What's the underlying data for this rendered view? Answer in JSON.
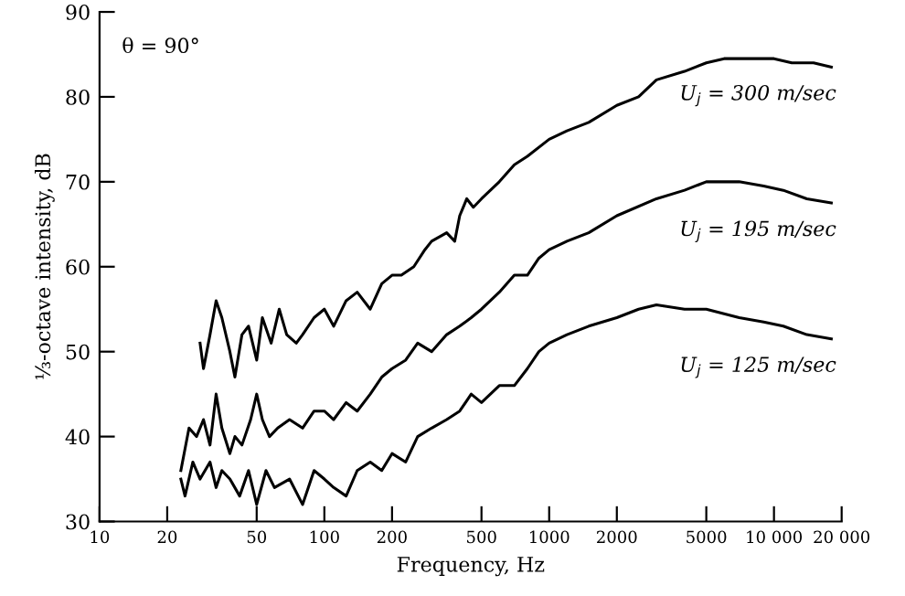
{
  "chart_data": {
    "type": "line",
    "log": "x",
    "xlabel": "Frequency, Hz",
    "ylabel": "⅓-octave intensity, dB",
    "annotations": [
      "θ = 90°"
    ],
    "xlim": [
      10,
      20000
    ],
    "ylim": [
      30,
      90
    ],
    "xticks": [
      10,
      20,
      50,
      100,
      200,
      500,
      1000,
      2000,
      5000,
      {
        "value": 10000,
        "label": "10 000"
      },
      {
        "value": 20000,
        "label": "20 000"
      }
    ],
    "yticks": [
      30,
      40,
      50,
      60,
      70,
      80,
      90
    ],
    "grid": false,
    "legend": false,
    "marker": "none",
    "line_style": "solid",
    "series": [
      {
        "name": "U$_{j}$ = 300 m/sec",
        "color": "#000000",
        "x": [
          28,
          29,
          31,
          33,
          35,
          38,
          40,
          43,
          46,
          50,
          53,
          58,
          63,
          68,
          75,
          80,
          90,
          100,
          110,
          125,
          140,
          160,
          180,
          200,
          220,
          250,
          280,
          300,
          350,
          380,
          400,
          430,
          460,
          500,
          600,
          700,
          800,
          1000,
          1200,
          1500,
          2000,
          2500,
          3000,
          4000,
          5000,
          6000,
          8000,
          10000,
          12000,
          15000,
          18000
        ],
        "values": [
          51,
          48,
          52,
          56,
          54,
          50,
          47,
          52,
          53,
          49,
          54,
          51,
          55,
          52,
          51,
          52,
          54,
          55,
          53,
          56,
          57,
          55,
          58,
          59,
          59,
          60,
          62,
          63,
          64,
          63,
          66,
          68,
          67,
          68,
          70,
          72,
          73,
          75,
          76,
          77,
          79,
          80,
          82,
          83,
          84,
          84.5,
          84.5,
          84.5,
          84,
          84,
          83.5
        ]
      },
      {
        "name": "U$_{j}$ = 195 m/sec",
        "color": "#000000",
        "x": [
          23,
          25,
          27,
          29,
          31,
          33,
          35,
          38,
          40,
          43,
          47,
          50,
          53,
          57,
          62,
          70,
          80,
          90,
          100,
          110,
          125,
          140,
          160,
          180,
          200,
          230,
          260,
          300,
          350,
          400,
          450,
          500,
          600,
          700,
          800,
          900,
          1000,
          1200,
          1500,
          2000,
          3000,
          4000,
          5000,
          7000,
          9000,
          11000,
          14000,
          18000
        ],
        "values": [
          36,
          41,
          40,
          42,
          39,
          45,
          41,
          38,
          40,
          39,
          42,
          45,
          42,
          40,
          41,
          42,
          41,
          43,
          43,
          42,
          44,
          43,
          45,
          47,
          48,
          49,
          51,
          50,
          52,
          53,
          54,
          55,
          57,
          59,
          59,
          61,
          62,
          63,
          64,
          66,
          68,
          69,
          70,
          70,
          69.5,
          69,
          68,
          67.5
        ]
      },
      {
        "name": "U$_{j}$ = 125 m/sec",
        "color": "#000000",
        "x": [
          23,
          24,
          26,
          28,
          31,
          33,
          35,
          38,
          42,
          46,
          50,
          55,
          60,
          70,
          80,
          90,
          100,
          110,
          125,
          140,
          160,
          180,
          200,
          230,
          260,
          300,
          350,
          400,
          450,
          500,
          600,
          700,
          800,
          900,
          1000,
          1200,
          1500,
          2000,
          2500,
          3000,
          4000,
          5000,
          7000,
          9000,
          11000,
          14000,
          18000
        ],
        "values": [
          35,
          33,
          37,
          35,
          37,
          34,
          36,
          35,
          33,
          36,
          32,
          36,
          34,
          35,
          32,
          36,
          35,
          34,
          33,
          36,
          37,
          36,
          38,
          37,
          40,
          41,
          42,
          43,
          45,
          44,
          46,
          46,
          48,
          50,
          51,
          52,
          53,
          54,
          55,
          55.5,
          55,
          55,
          54,
          53.5,
          53,
          52,
          51.5
        ]
      }
    ]
  }
}
